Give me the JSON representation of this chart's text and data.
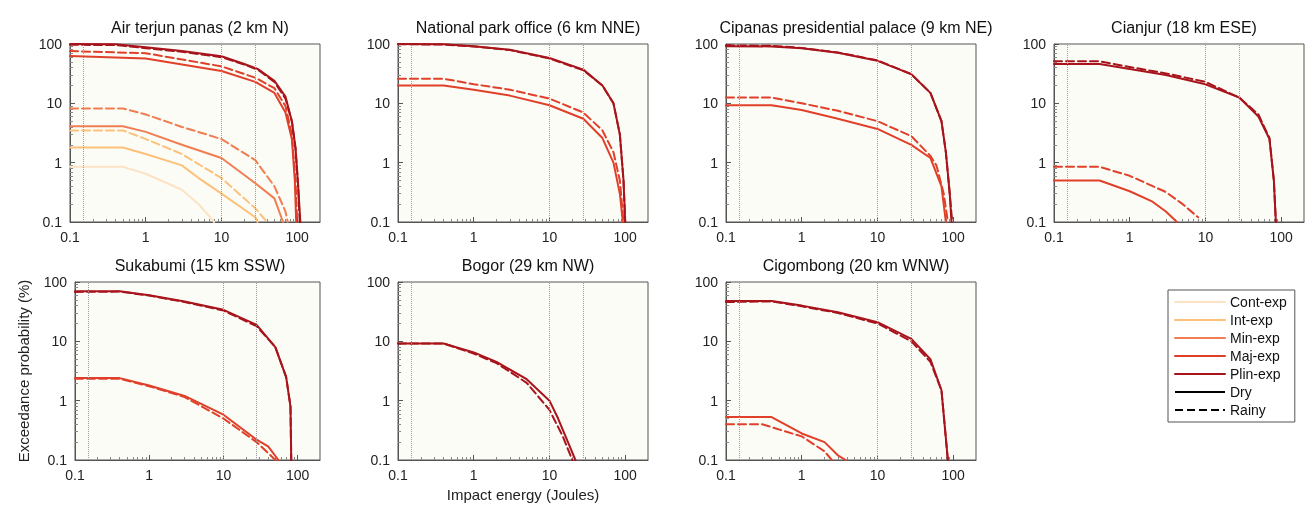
{
  "chart_data": [
    {
      "type": "line",
      "title": "Air terjun panas (2 km N)",
      "legend": "right",
      "annotations": [
        "Dry",
        "Rainy"
      ],
      "log": "xy",
      "xlim": [
        0.1,
        200
      ],
      "ylim": [
        0.1,
        100
      ],
      "xticks": [
        0.1,
        1,
        10,
        100
      ],
      "yticks": [
        0.1,
        1,
        10,
        100
      ],
      "grid": false,
      "ref_lines": [
        {
          "axis": "x",
          "value": 0.15,
          "color": "#9a9a9a",
          "line_style": "dotted"
        },
        {
          "axis": "x",
          "value": 10,
          "color": "#9a9a9a",
          "line_style": "dotted"
        },
        {
          "axis": "x",
          "value": 28,
          "color": "#9a9a9a",
          "line_style": "dotted"
        }
      ],
      "series": [
        {
          "name": "Cont-exp",
          "color": "#fde3c3",
          "line_style": "solid",
          "x": [
            0.1,
            0.5,
            1,
            3,
            5,
            8
          ],
          "values": [
            0.85,
            0.85,
            0.65,
            0.35,
            0.2,
            0.1
          ]
        },
        {
          "color": "#fdc07a",
          "line_style": "dashed",
          "x": [
            0.1,
            0.5,
            1,
            3,
            10,
            28,
            40
          ],
          "values": [
            3.5,
            3.5,
            2.5,
            1.4,
            0.55,
            0.17,
            0.1
          ]
        },
        {
          "name": "Int-exp",
          "color": "#fdc07a",
          "line_style": "solid",
          "x": [
            0.1,
            0.5,
            1,
            3,
            5,
            10,
            28,
            30
          ],
          "values": [
            1.8,
            1.8,
            1.4,
            0.9,
            0.55,
            0.3,
            0.12,
            0.1
          ]
        },
        {
          "color": "#f07e52",
          "line_style": "dashed",
          "x": [
            0.1,
            0.5,
            1,
            3,
            10,
            28,
            50,
            70,
            75
          ],
          "values": [
            8.2,
            8.2,
            6.5,
            4,
            2.5,
            1.1,
            0.4,
            0.15,
            0.1
          ]
        },
        {
          "name": "Min-exp",
          "color": "#f07e52",
          "line_style": "solid",
          "x": [
            0.1,
            0.5,
            1,
            3,
            10,
            28,
            50,
            65
          ],
          "values": [
            4.1,
            4.1,
            3.3,
            2,
            1.2,
            0.45,
            0.25,
            0.1
          ]
        },
        {
          "color": "#e0402a",
          "line_style": "dashed",
          "x": [
            0.1,
            1,
            10,
            28,
            50,
            70,
            85,
            95,
            100
          ],
          "values": [
            76,
            70,
            42,
            27,
            18,
            9,
            3,
            0.5,
            0.1
          ]
        },
        {
          "name": "Maj-exp",
          "color": "#e0402a",
          "line_style": "solid",
          "x": [
            0.1,
            1,
            10,
            28,
            50,
            70,
            85,
            93,
            97
          ],
          "values": [
            63,
            57,
            35,
            23,
            15,
            7,
            2.5,
            0.5,
            0.1
          ]
        },
        {
          "color": "#a8141c",
          "line_style": "dashed",
          "x": [
            0.1,
            0.4,
            1,
            3,
            10,
            20,
            30,
            50,
            70,
            85,
            95,
            103,
            108
          ],
          "values": [
            97,
            96,
            85,
            74,
            60,
            45,
            37,
            23,
            12,
            5,
            1.7,
            0.4,
            0.1
          ]
        },
        {
          "name": "Plin-exp",
          "color": "#a8141c",
          "line_style": "solid",
          "x": [
            0.1,
            0.4,
            1,
            3,
            10,
            20,
            30,
            50,
            70,
            85,
            95,
            103,
            110
          ],
          "values": [
            100,
            99,
            88,
            76,
            62,
            46,
            38,
            24,
            13,
            5,
            1.8,
            0.4,
            0.1
          ]
        }
      ]
    },
    {
      "type": "line",
      "title": "National park office (6 km NNE)",
      "log": "xy",
      "xlim": [
        0.1,
        200
      ],
      "ylim": [
        0.1,
        100
      ],
      "xticks": [
        0.1,
        1,
        10,
        100
      ],
      "yticks": [
        0.1,
        1,
        10,
        100
      ],
      "grid": false,
      "ref_lines": [
        {
          "axis": "x",
          "value": 0.15,
          "color": "#9a9a9a",
          "line_style": "dotted"
        },
        {
          "axis": "x",
          "value": 10,
          "color": "#9a9a9a",
          "line_style": "dotted"
        },
        {
          "axis": "x",
          "value": 28,
          "color": "#9a9a9a",
          "line_style": "dotted"
        }
      ],
      "series": [
        {
          "color": "#e0402a",
          "line_style": "dashed",
          "x": [
            0.1,
            0.4,
            1,
            3,
            10,
            28,
            50,
            70,
            85,
            95
          ],
          "values": [
            26,
            26,
            21,
            17,
            12,
            7,
            3.5,
            1.5,
            0.5,
            0.1
          ]
        },
        {
          "color": "#e0402a",
          "line_style": "solid",
          "x": [
            0.1,
            0.4,
            1,
            3,
            10,
            28,
            50,
            70,
            85,
            93
          ],
          "values": [
            20,
            20,
            17,
            13.5,
            9.3,
            5.5,
            2.6,
            1,
            0.3,
            0.1
          ]
        },
        {
          "color": "#a8141c",
          "line_style": "dashed",
          "x": [
            0.1,
            0.4,
            1,
            3,
            10,
            28,
            50,
            70,
            85,
            95,
            100
          ],
          "values": [
            99,
            98,
            91,
            79,
            57,
            36,
            20,
            10,
            3,
            0.5,
            0.1
          ]
        },
        {
          "color": "#a8141c",
          "line_style": "solid",
          "x": [
            0.1,
            0.4,
            1,
            3,
            10,
            28,
            50,
            70,
            85,
            95,
            100
          ],
          "values": [
            100,
            99,
            92,
            80,
            58,
            37,
            20,
            10,
            3,
            0.5,
            0.1
          ]
        }
      ]
    },
    {
      "type": "line",
      "title": "Cipanas presidential palace (9 km NE)",
      "log": "xy",
      "xlim": [
        0.1,
        200
      ],
      "ylim": [
        0.1,
        100
      ],
      "xticks": [
        0.1,
        1,
        10,
        100
      ],
      "yticks": [
        0.1,
        1,
        10,
        100
      ],
      "grid": false,
      "ref_lines": [
        {
          "axis": "x",
          "value": 0.15,
          "color": "#9a9a9a",
          "line_style": "dotted"
        },
        {
          "axis": "x",
          "value": 10,
          "color": "#9a9a9a",
          "line_style": "dotted"
        },
        {
          "axis": "x",
          "value": 28,
          "color": "#9a9a9a",
          "line_style": "dotted"
        }
      ],
      "series": [
        {
          "color": "#e0402a",
          "line_style": "dashed",
          "x": [
            0.1,
            0.4,
            1,
            3,
            10,
            28,
            50,
            60,
            75,
            85
          ],
          "values": [
            12.5,
            12.5,
            10,
            7.5,
            5,
            2.8,
            1.3,
            0.9,
            0.3,
            0.1
          ]
        },
        {
          "color": "#e0402a",
          "line_style": "solid",
          "x": [
            0.1,
            0.4,
            1,
            3,
            10,
            28,
            50,
            70,
            80
          ],
          "values": [
            9.3,
            9.3,
            7.7,
            5.5,
            3.7,
            2,
            1.2,
            0.4,
            0.1
          ]
        },
        {
          "color": "#a8141c",
          "line_style": "dashed",
          "x": [
            0.1,
            0.4,
            1,
            3,
            10,
            28,
            50,
            70,
            80,
            90,
            97
          ],
          "values": [
            95,
            93,
            86,
            72,
            53,
            31,
            15,
            5,
            1.5,
            0.3,
            0.1
          ]
        },
        {
          "color": "#a8141c",
          "line_style": "solid",
          "x": [
            0.1,
            0.4,
            1,
            3,
            10,
            28,
            50,
            70,
            80,
            90,
            95
          ],
          "values": [
            92,
            91,
            85,
            71,
            52,
            31,
            15,
            5,
            1.5,
            0.3,
            0.1
          ]
        }
      ]
    },
    {
      "type": "line",
      "title": "Cianjur (18 km ESE)",
      "log": "xy",
      "xlim": [
        0.1,
        200
      ],
      "ylim": [
        0.1,
        100
      ],
      "xticks": [
        0.1,
        1,
        10,
        100
      ],
      "yticks": [
        0.1,
        1,
        10,
        100
      ],
      "grid": false,
      "ref_lines": [
        {
          "axis": "x",
          "value": 0.15,
          "color": "#9a9a9a",
          "line_style": "dotted"
        },
        {
          "axis": "x",
          "value": 10,
          "color": "#9a9a9a",
          "line_style": "dotted"
        },
        {
          "axis": "x",
          "value": 28,
          "color": "#9a9a9a",
          "line_style": "dotted"
        }
      ],
      "series": [
        {
          "color": "#e0402a",
          "line_style": "dashed",
          "x": [
            0.1,
            0.4,
            1,
            3,
            5,
            8
          ],
          "values": [
            0.85,
            0.85,
            0.6,
            0.32,
            0.2,
            0.12
          ]
        },
        {
          "color": "#e0402a",
          "line_style": "solid",
          "x": [
            0.1,
            0.4,
            1,
            2,
            3,
            4.2
          ],
          "values": [
            0.5,
            0.5,
            0.33,
            0.22,
            0.15,
            0.1
          ]
        },
        {
          "color": "#a8141c",
          "line_style": "dashed",
          "x": [
            0.1,
            0.4,
            1,
            3,
            10,
            28,
            50,
            70,
            80,
            85
          ],
          "values": [
            51,
            51,
            41,
            32,
            23,
            12.5,
            6.5,
            2.6,
            0.5,
            0.1
          ]
        },
        {
          "color": "#a8141c",
          "line_style": "solid",
          "x": [
            0.1,
            0.4,
            1,
            3,
            10,
            28,
            50,
            70,
            80,
            85
          ],
          "values": [
            46,
            46,
            38,
            30,
            21,
            12.5,
            6,
            2.5,
            0.5,
            0.1
          ]
        }
      ]
    },
    {
      "type": "line",
      "title": "Sukabumi (15 km SSW)",
      "ylabel": "Exceedance probability (%)",
      "log": "xy",
      "xlim": [
        0.1,
        200
      ],
      "ylim": [
        0.1,
        100
      ],
      "xticks": [
        0.1,
        1,
        10,
        100
      ],
      "yticks": [
        0.1,
        1,
        10,
        100
      ],
      "grid": false,
      "ref_lines": [
        {
          "axis": "x",
          "value": 0.15,
          "color": "#9a9a9a",
          "line_style": "dotted"
        },
        {
          "axis": "x",
          "value": 10,
          "color": "#9a9a9a",
          "line_style": "dotted"
        },
        {
          "axis": "x",
          "value": 28,
          "color": "#9a9a9a",
          "line_style": "dotted"
        }
      ],
      "series": [
        {
          "color": "#e0402a",
          "line_style": "dashed",
          "x": [
            0.1,
            0.4,
            1,
            3,
            10,
            28,
            50
          ],
          "values": [
            2.35,
            2.35,
            1.75,
            1.15,
            0.5,
            0.2,
            0.1
          ]
        },
        {
          "color": "#e0402a",
          "line_style": "solid",
          "x": [
            0.1,
            0.4,
            1,
            3,
            10,
            28,
            40,
            55
          ],
          "values": [
            2.4,
            2.4,
            1.8,
            1.2,
            0.58,
            0.22,
            0.17,
            0.1
          ]
        },
        {
          "color": "#a8141c",
          "line_style": "dashed",
          "x": [
            0.1,
            0.4,
            1,
            3,
            10,
            28,
            50,
            70,
            80,
            82
          ],
          "values": [
            68,
            69,
            59,
            46,
            33,
            18,
            8,
            2.5,
            0.8,
            0.1
          ]
        },
        {
          "color": "#a8141c",
          "line_style": "solid",
          "x": [
            0.1,
            0.4,
            1,
            3,
            10,
            28,
            50,
            70,
            80,
            82
          ],
          "values": [
            70,
            70,
            60,
            47,
            34,
            19,
            8,
            2.5,
            0.8,
            0.1
          ]
        }
      ]
    },
    {
      "type": "line",
      "title": "Bogor (29 km NW)",
      "xlabel": "Impact energy (Joules)",
      "log": "xy",
      "xlim": [
        0.1,
        200
      ],
      "ylim": [
        0.1,
        100
      ],
      "xticks": [
        0.1,
        1,
        10,
        100
      ],
      "yticks": [
        0.1,
        1,
        10,
        100
      ],
      "grid": false,
      "ref_lines": [
        {
          "axis": "x",
          "value": 0.15,
          "color": "#9a9a9a",
          "line_style": "dotted"
        },
        {
          "axis": "x",
          "value": 10,
          "color": "#9a9a9a",
          "line_style": "dotted"
        },
        {
          "axis": "x",
          "value": 28,
          "color": "#9a9a9a",
          "line_style": "dotted"
        }
      ],
      "series": [
        {
          "color": "#a8141c",
          "line_style": "dashed",
          "x": [
            0.1,
            0.4,
            1,
            2,
            5,
            10,
            15,
            20
          ],
          "values": [
            9.2,
            9.2,
            6.2,
            4.3,
            2,
            0.7,
            0.25,
            0.1
          ]
        },
        {
          "color": "#a8141c",
          "line_style": "solid",
          "x": [
            0.1,
            0.4,
            1,
            2,
            5,
            10,
            13,
            17,
            22
          ],
          "values": [
            9.2,
            9.2,
            6.5,
            4.5,
            2.3,
            1,
            0.5,
            0.22,
            0.1
          ]
        }
      ]
    },
    {
      "type": "line",
      "title": "Cigombong (20 km WNW)",
      "log": "xy",
      "xlim": [
        0.1,
        200
      ],
      "ylim": [
        0.1,
        100
      ],
      "xticks": [
        0.1,
        1,
        10,
        100
      ],
      "yticks": [
        0.1,
        1,
        10,
        100
      ],
      "grid": false,
      "ref_lines": [
        {
          "axis": "x",
          "value": 0.15,
          "color": "#9a9a9a",
          "line_style": "dotted"
        },
        {
          "axis": "x",
          "value": 10,
          "color": "#9a9a9a",
          "line_style": "dotted"
        },
        {
          "axis": "x",
          "value": 28,
          "color": "#9a9a9a",
          "line_style": "dotted"
        }
      ],
      "series": [
        {
          "color": "#e0402a",
          "line_style": "dashed",
          "x": [
            0.1,
            0.3,
            1,
            2,
            2.5
          ],
          "values": [
            0.4,
            0.4,
            0.25,
            0.14,
            0.1
          ]
        },
        {
          "color": "#e0402a",
          "line_style": "solid",
          "x": [
            0.1,
            0.4,
            1,
            2,
            3,
            3.8
          ],
          "values": [
            0.53,
            0.53,
            0.28,
            0.2,
            0.12,
            0.1
          ]
        },
        {
          "color": "#a8141c",
          "line_style": "dashed",
          "x": [
            0.1,
            0.4,
            1,
            3,
            10,
            28,
            50,
            70,
            85
          ],
          "values": [
            46,
            47,
            39,
            30,
            20,
            10,
            4.5,
            1.5,
            0.1
          ]
        },
        {
          "color": "#a8141c",
          "line_style": "solid",
          "x": [
            0.1,
            0.4,
            1,
            3,
            10,
            28,
            50,
            70,
            85
          ],
          "values": [
            48,
            48,
            40,
            31,
            21,
            11,
            5,
            1.5,
            0.1
          ]
        }
      ]
    }
  ]
}
